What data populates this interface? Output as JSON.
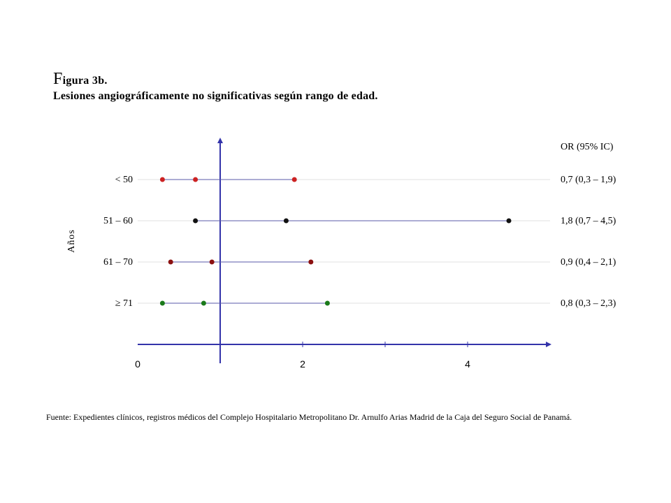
{
  "figure": {
    "title_initial": "F",
    "title_rest": "igura 3b.",
    "subtitle": "Lesiones angiográficamente no significativas según rango de edad.",
    "source": "Fuente: Expedientes clínicos, registros médicos del Complejo Hospitalario Metropolitano Dr. Arnulfo Arias Madrid de la Caja del Seguro Social de Panamá."
  },
  "chart_data": {
    "type": "scatter",
    "ylabel": "Años",
    "or_header": "OR (95% IC)",
    "xlim": [
      0,
      5
    ],
    "x_ticks": [
      0,
      2,
      4
    ],
    "reference_line": 1,
    "grid": true,
    "rows": [
      {
        "label": "< 50",
        "or": 0.7,
        "low": 0.3,
        "high": 1.9,
        "or_text": "0,7 (0,3 – 1,9)",
        "color": "#cc2222"
      },
      {
        "label": "51 – 60",
        "or": 1.8,
        "low": 0.7,
        "high": 4.5,
        "or_text": "1,8 (0,7 – 4,5)",
        "color": "#111111"
      },
      {
        "label": "61 – 70",
        "or": 0.9,
        "low": 0.4,
        "high": 2.1,
        "or_text": "0,9 (0,4 – 2,1)",
        "color": "#8b1010"
      },
      {
        "label": "≥ 71",
        "or": 0.8,
        "low": 0.3,
        "high": 2.3,
        "or_text": "0,8 (0,3 – 2,3)",
        "color": "#1a7a1a"
      }
    ],
    "colors": {
      "axis": "#3333aa",
      "ci_line": "#5a5aa8",
      "grid": "#e0e0e0"
    }
  }
}
